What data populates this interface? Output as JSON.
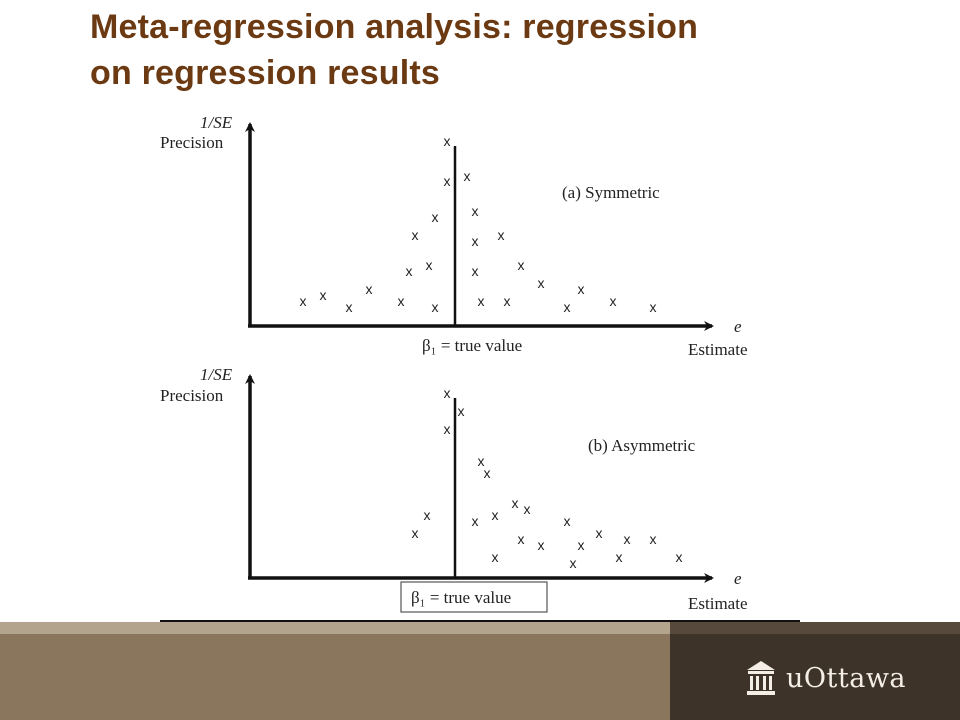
{
  "slide": {
    "title_line1": "Meta-regression analysis: regression",
    "title_line2": "on regression results",
    "footer_brand": "uOttawa",
    "colors": {
      "title": "#6b3a12",
      "footer_light": "#8a765c",
      "footer_dark": "#3e3328"
    }
  },
  "diagram": {
    "marker": "x",
    "panels": [
      {
        "panel_label": "(a) Symmetric",
        "y_label_top": "1/SE",
        "y_label": "Precision",
        "x_label_symbol": "e",
        "x_label": "Estimate",
        "true_value_label": "β₁ = true value",
        "boxed": false,
        "marks": [
          {
            "dx": -8,
            "h": 180
          },
          {
            "dx": -8,
            "h": 140
          },
          {
            "dx": 12,
            "h": 145
          },
          {
            "dx": 20,
            "h": 110
          },
          {
            "dx": -20,
            "h": 104
          },
          {
            "dx": -40,
            "h": 86
          },
          {
            "dx": 20,
            "h": 80
          },
          {
            "dx": 46,
            "h": 86
          },
          {
            "dx": -26,
            "h": 56
          },
          {
            "dx": -46,
            "h": 50
          },
          {
            "dx": 20,
            "h": 50
          },
          {
            "dx": 66,
            "h": 56
          },
          {
            "dx": 86,
            "h": 38
          },
          {
            "dx": -86,
            "h": 32
          },
          {
            "dx": 126,
            "h": 32
          },
          {
            "dx": -132,
            "h": 26
          },
          {
            "dx": -152,
            "h": 20
          },
          {
            "dx": -54,
            "h": 20
          },
          {
            "dx": 26,
            "h": 20
          },
          {
            "dx": 52,
            "h": 20
          },
          {
            "dx": 158,
            "h": 20
          },
          {
            "dx": -106,
            "h": 14
          },
          {
            "dx": -20,
            "h": 14
          },
          {
            "dx": 112,
            "h": 14
          },
          {
            "dx": 198,
            "h": 14
          }
        ]
      },
      {
        "panel_label": "(b) Asymmetric",
        "y_label_top": "1/SE",
        "y_label": "Precision",
        "x_label_symbol": "e",
        "x_label": "Estimate",
        "true_value_label": "β₁ = true value",
        "boxed": true,
        "marks": [
          {
            "dx": -8,
            "h": 180
          },
          {
            "dx": 6,
            "h": 162
          },
          {
            "dx": -8,
            "h": 144
          },
          {
            "dx": 26,
            "h": 112
          },
          {
            "dx": 32,
            "h": 100
          },
          {
            "dx": 60,
            "h": 70
          },
          {
            "dx": 72,
            "h": 64
          },
          {
            "dx": -28,
            "h": 58
          },
          {
            "dx": 20,
            "h": 52
          },
          {
            "dx": 40,
            "h": 58
          },
          {
            "dx": 112,
            "h": 52
          },
          {
            "dx": -40,
            "h": 40
          },
          {
            "dx": 144,
            "h": 40
          },
          {
            "dx": 66,
            "h": 34
          },
          {
            "dx": 172,
            "h": 34
          },
          {
            "dx": 198,
            "h": 34
          },
          {
            "dx": 86,
            "h": 28
          },
          {
            "dx": 126,
            "h": 28
          },
          {
            "dx": 40,
            "h": 16
          },
          {
            "dx": 164,
            "h": 16
          },
          {
            "dx": 224,
            "h": 16
          },
          {
            "dx": 118,
            "h": 10
          }
        ]
      }
    ]
  }
}
